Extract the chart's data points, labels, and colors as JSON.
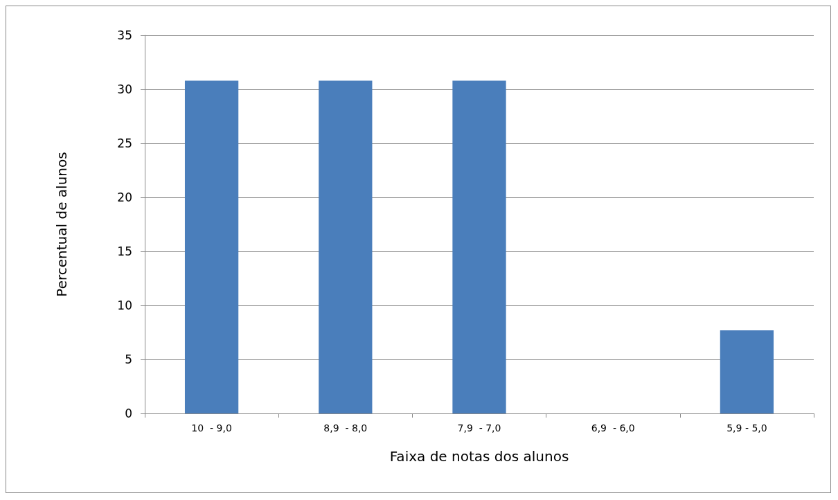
{
  "chart_data": {
    "type": "bar",
    "xlabel": "Faixa de notas dos alunos",
    "ylabel": "Percentual de alunos",
    "categories": [
      "10  - 9,0",
      "8,9  - 8,0",
      "7,9  - 7,0",
      "6,9  - 6,0",
      "5,9 - 5,0"
    ],
    "values": [
      30.8,
      30.8,
      30.8,
      0,
      7.7
    ],
    "color": "#4a7ebb",
    "ylim": [
      0,
      35
    ],
    "yticks": [
      0,
      5,
      10,
      15,
      20,
      25,
      30,
      35
    ],
    "grid": "y"
  }
}
